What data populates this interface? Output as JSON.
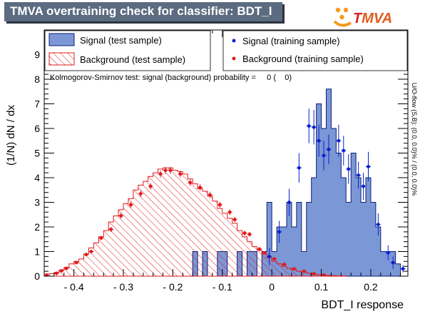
{
  "title": "TMVA overtraining check for classifier: BDT_I",
  "logo": {
    "text": "TMVA",
    "colors": {
      "dots": "#f39a1f",
      "text_T": "#d8231f",
      "text_rest": "#e05a1c"
    }
  },
  "side_text": "U/O-flow (S,B): (0.0, 0.0)% / (0.0, 0.0)%",
  "ks_text": "Kolmogorov-Smirnov test: signal (background) probability =     0 (    0)",
  "colors": {
    "signal_fill": "#7b97d5",
    "signal_line": "#0b1f7a",
    "signal_points": "#0a1fd0",
    "background_line": "#e0191b",
    "background_points": "#e0191b"
  },
  "chart_data": {
    "type": "histogram",
    "xlabel": "BDT_I response",
    "ylabel": "(1/N) dN / dx",
    "xlim": [
      -0.46,
      0.275
    ],
    "ylim": [
      0,
      10
    ],
    "bin_width": 0.01,
    "x_ticks": [
      -0.4,
      -0.3,
      -0.2,
      -0.1,
      0,
      0.1,
      0.2
    ],
    "y_ticks": [
      0,
      1,
      2,
      3,
      4,
      5,
      6,
      7,
      8,
      9
    ],
    "legend": {
      "signal_test": "Signal (test sample)",
      "background_test": "Background (test sample)",
      "signal_train": "Signal (training sample)",
      "background_train": "Background (training sample)"
    },
    "signal_test": [
      {
        "x": -0.165,
        "y": 0.0
      },
      {
        "x": -0.155,
        "y": 1.0
      },
      {
        "x": -0.145,
        "y": 0.0
      },
      {
        "x": -0.135,
        "y": 1.0
      },
      {
        "x": -0.125,
        "y": 0.0
      },
      {
        "x": -0.115,
        "y": 0.0
      },
      {
        "x": -0.105,
        "y": 1.0
      },
      {
        "x": -0.095,
        "y": 1.0
      },
      {
        "x": -0.085,
        "y": 0.0
      },
      {
        "x": -0.075,
        "y": 0.0
      },
      {
        "x": -0.065,
        "y": 1.0
      },
      {
        "x": -0.055,
        "y": 0.0
      },
      {
        "x": -0.045,
        "y": 1.0
      },
      {
        "x": -0.035,
        "y": 1.0
      },
      {
        "x": -0.025,
        "y": 0.0
      },
      {
        "x": -0.015,
        "y": 1.0
      },
      {
        "x": -0.005,
        "y": 3.0
      },
      {
        "x": 0.005,
        "y": 1.0
      },
      {
        "x": 0.015,
        "y": 2.0
      },
      {
        "x": 0.025,
        "y": 2.0
      },
      {
        "x": 0.035,
        "y": 3.0
      },
      {
        "x": 0.045,
        "y": 2.0
      },
      {
        "x": 0.055,
        "y": 3.0
      },
      {
        "x": 0.065,
        "y": 1.0
      },
      {
        "x": 0.075,
        "y": 3.0
      },
      {
        "x": 0.085,
        "y": 4.0
      },
      {
        "x": 0.095,
        "y": 7.0
      },
      {
        "x": 0.105,
        "y": 6.0
      },
      {
        "x": 0.115,
        "y": 7.6
      },
      {
        "x": 0.125,
        "y": 6.0
      },
      {
        "x": 0.135,
        "y": 5.0
      },
      {
        "x": 0.145,
        "y": 4.0
      },
      {
        "x": 0.155,
        "y": 3.0
      },
      {
        "x": 0.165,
        "y": 5.0
      },
      {
        "x": 0.175,
        "y": 4.0
      },
      {
        "x": 0.185,
        "y": 3.0
      },
      {
        "x": 0.195,
        "y": 4.0
      },
      {
        "x": 0.205,
        "y": 3.0
      },
      {
        "x": 0.215,
        "y": 2.0
      },
      {
        "x": 0.225,
        "y": 1.0
      },
      {
        "x": 0.235,
        "y": 1.0
      },
      {
        "x": 0.245,
        "y": 1.0
      },
      {
        "x": 0.255,
        "y": 0.5
      }
    ],
    "background_test": [
      {
        "x": -0.455,
        "y": 0.05
      },
      {
        "x": -0.445,
        "y": 0.1
      },
      {
        "x": -0.435,
        "y": 0.15
      },
      {
        "x": -0.425,
        "y": 0.25
      },
      {
        "x": -0.415,
        "y": 0.35
      },
      {
        "x": -0.405,
        "y": 0.5
      },
      {
        "x": -0.395,
        "y": 0.6
      },
      {
        "x": -0.385,
        "y": 0.7
      },
      {
        "x": -0.375,
        "y": 0.9
      },
      {
        "x": -0.365,
        "y": 1.15
      },
      {
        "x": -0.355,
        "y": 1.35
      },
      {
        "x": -0.345,
        "y": 1.6
      },
      {
        "x": -0.335,
        "y": 1.85
      },
      {
        "x": -0.325,
        "y": 2.2
      },
      {
        "x": -0.315,
        "y": 2.45
      },
      {
        "x": -0.305,
        "y": 2.7
      },
      {
        "x": -0.295,
        "y": 2.95
      },
      {
        "x": -0.285,
        "y": 3.15
      },
      {
        "x": -0.275,
        "y": 3.5
      },
      {
        "x": -0.265,
        "y": 3.7
      },
      {
        "x": -0.255,
        "y": 3.85
      },
      {
        "x": -0.245,
        "y": 4.05
      },
      {
        "x": -0.235,
        "y": 4.2
      },
      {
        "x": -0.225,
        "y": 4.35
      },
      {
        "x": -0.215,
        "y": 4.4
      },
      {
        "x": -0.205,
        "y": 4.4
      },
      {
        "x": -0.195,
        "y": 4.3
      },
      {
        "x": -0.185,
        "y": 4.25
      },
      {
        "x": -0.175,
        "y": 4.15
      },
      {
        "x": -0.165,
        "y": 3.95
      },
      {
        "x": -0.155,
        "y": 3.75
      },
      {
        "x": -0.145,
        "y": 3.55
      },
      {
        "x": -0.135,
        "y": 3.45
      },
      {
        "x": -0.125,
        "y": 3.25
      },
      {
        "x": -0.115,
        "y": 3.05
      },
      {
        "x": -0.105,
        "y": 2.75
      },
      {
        "x": -0.095,
        "y": 2.55
      },
      {
        "x": -0.085,
        "y": 2.35
      },
      {
        "x": -0.075,
        "y": 2.15
      },
      {
        "x": -0.065,
        "y": 1.85
      },
      {
        "x": -0.055,
        "y": 1.6
      },
      {
        "x": -0.045,
        "y": 1.4
      },
      {
        "x": -0.035,
        "y": 1.2
      },
      {
        "x": -0.025,
        "y": 1.05
      },
      {
        "x": -0.015,
        "y": 0.9
      },
      {
        "x": -0.005,
        "y": 0.75
      },
      {
        "x": 0.005,
        "y": 0.6
      },
      {
        "x": 0.015,
        "y": 0.5
      },
      {
        "x": 0.025,
        "y": 0.4
      },
      {
        "x": 0.035,
        "y": 0.32
      },
      {
        "x": 0.045,
        "y": 0.26
      },
      {
        "x": 0.055,
        "y": 0.2
      },
      {
        "x": 0.065,
        "y": 0.16
      },
      {
        "x": 0.075,
        "y": 0.12
      },
      {
        "x": 0.085,
        "y": 0.09
      },
      {
        "x": 0.095,
        "y": 0.06
      },
      {
        "x": 0.105,
        "y": 0.04
      },
      {
        "x": 0.115,
        "y": 0.03
      },
      {
        "x": 0.125,
        "y": 0.02
      },
      {
        "x": 0.135,
        "y": 0.01
      },
      {
        "x": 0.145,
        "y": 0.01
      }
    ],
    "signal_train": [
      {
        "x": -0.005,
        "y": 0.8,
        "err": 0.35
      },
      {
        "x": 0.015,
        "y": 1.8,
        "err": 0.45
      },
      {
        "x": 0.035,
        "y": 3.0,
        "err": 0.55
      },
      {
        "x": 0.055,
        "y": 4.4,
        "err": 0.6
      },
      {
        "x": 0.075,
        "y": 6.1,
        "err": 0.7
      },
      {
        "x": 0.085,
        "y": 6.05,
        "err": 0.7
      },
      {
        "x": 0.095,
        "y": 5.5,
        "err": 0.65
      },
      {
        "x": 0.105,
        "y": 4.9,
        "err": 0.6
      },
      {
        "x": 0.115,
        "y": 5.15,
        "err": 0.6
      },
      {
        "x": 0.135,
        "y": 5.5,
        "err": 0.65
      },
      {
        "x": 0.145,
        "y": 5.1,
        "err": 0.6
      },
      {
        "x": 0.155,
        "y": 4.35,
        "err": 0.6
      },
      {
        "x": 0.175,
        "y": 4.1,
        "err": 0.55
      },
      {
        "x": 0.185,
        "y": 3.65,
        "err": 0.55
      },
      {
        "x": 0.195,
        "y": 4.45,
        "err": 0.6
      },
      {
        "x": 0.215,
        "y": 2.1,
        "err": 0.45
      },
      {
        "x": 0.235,
        "y": 0.95,
        "err": 0.3
      },
      {
        "x": 0.245,
        "y": 0.55,
        "err": 0.25
      },
      {
        "x": 0.265,
        "y": 0.3,
        "err": 0.15
      }
    ],
    "background_train": [
      {
        "x": -0.455,
        "y": 0.05,
        "err": 0.03
      },
      {
        "x": -0.435,
        "y": 0.12,
        "err": 0.04
      },
      {
        "x": -0.425,
        "y": 0.22,
        "err": 0.05
      },
      {
        "x": -0.415,
        "y": 0.32,
        "err": 0.05
      },
      {
        "x": -0.395,
        "y": 0.55,
        "err": 0.06
      },
      {
        "x": -0.375,
        "y": 0.88,
        "err": 0.07
      },
      {
        "x": -0.365,
        "y": 1.0,
        "err": 0.07
      },
      {
        "x": -0.345,
        "y": 1.55,
        "err": 0.09
      },
      {
        "x": -0.325,
        "y": 1.9,
        "err": 0.1
      },
      {
        "x": -0.305,
        "y": 2.45,
        "err": 0.11
      },
      {
        "x": -0.285,
        "y": 2.9,
        "err": 0.12
      },
      {
        "x": -0.265,
        "y": 3.35,
        "err": 0.13
      },
      {
        "x": -0.245,
        "y": 3.65,
        "err": 0.13
      },
      {
        "x": -0.225,
        "y": 4.15,
        "err": 0.14
      },
      {
        "x": -0.215,
        "y": 4.3,
        "err": 0.14
      },
      {
        "x": -0.205,
        "y": 4.3,
        "err": 0.14
      },
      {
        "x": -0.185,
        "y": 4.15,
        "err": 0.14
      },
      {
        "x": -0.165,
        "y": 3.8,
        "err": 0.13
      },
      {
        "x": -0.145,
        "y": 3.6,
        "err": 0.13
      },
      {
        "x": -0.125,
        "y": 3.3,
        "err": 0.13
      },
      {
        "x": -0.105,
        "y": 2.9,
        "err": 0.12
      },
      {
        "x": -0.085,
        "y": 2.6,
        "err": 0.11
      },
      {
        "x": -0.075,
        "y": 2.3,
        "err": 0.11
      },
      {
        "x": -0.055,
        "y": 1.75,
        "err": 0.1
      },
      {
        "x": -0.045,
        "y": 1.7,
        "err": 0.1
      },
      {
        "x": -0.025,
        "y": 1.1,
        "err": 0.08
      },
      {
        "x": -0.015,
        "y": 0.95,
        "err": 0.07
      },
      {
        "x": 0.005,
        "y": 0.7,
        "err": 0.06
      },
      {
        "x": 0.025,
        "y": 0.48,
        "err": 0.05
      },
      {
        "x": 0.045,
        "y": 0.3,
        "err": 0.04
      },
      {
        "x": 0.065,
        "y": 0.2,
        "err": 0.04
      },
      {
        "x": 0.085,
        "y": 0.1,
        "err": 0.03
      },
      {
        "x": 0.105,
        "y": 0.05,
        "err": 0.02
      }
    ]
  }
}
